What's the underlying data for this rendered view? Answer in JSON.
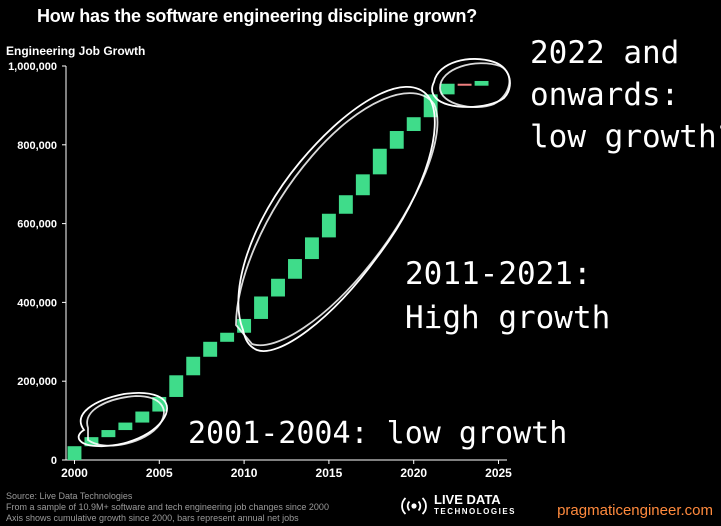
{
  "title": "How has the software engineering discipline grown?",
  "ylabel_title": "Engineering Job Growth",
  "chart_data": {
    "type": "waterfall",
    "title": "How has the software engineering discipline grown?",
    "ylabel": "Engineering Job Growth",
    "xlim": [
      1999.5,
      2025.5
    ],
    "ylim": [
      0,
      1000000
    ],
    "yticks": [
      0,
      200000,
      400000,
      600000,
      800000,
      1000000
    ],
    "ytick_labels": [
      "0",
      "200,000",
      "400,000",
      "600,000",
      "800,000",
      "1,000,000"
    ],
    "xticks": [
      2000,
      2005,
      2010,
      2015,
      2020,
      2025
    ],
    "years": [
      2000,
      2001,
      2002,
      2003,
      2004,
      2005,
      2006,
      2007,
      2008,
      2009,
      2010,
      2011,
      2012,
      2013,
      2014,
      2015,
      2016,
      2017,
      2018,
      2019,
      2020,
      2021,
      2022,
      2023,
      2024
    ],
    "cumulative_totals": [
      35000,
      58000,
      76000,
      95000,
      123000,
      160000,
      215000,
      262000,
      300000,
      323000,
      358000,
      415000,
      460000,
      510000,
      565000,
      625000,
      672000,
      725000,
      790000,
      835000,
      870000,
      928000,
      955000,
      950000,
      962000
    ],
    "colors": {
      "increase": "#3fdc8a",
      "decrease": "#f08080"
    }
  },
  "annotations": {
    "late": [
      "2022 and",
      "onwards:",
      "low growth?"
    ],
    "mid": [
      "2011-2021:",
      "High growth"
    ],
    "early": "2001-2004: low growth"
  },
  "footer": {
    "source": "Source: Live Data Technologies",
    "sample": "From a sample of 10.9M+ software and tech engineering job changes since 2000",
    "axis_note": "Axis shows cumulative growth since 2000, bars represent annual net jobs"
  },
  "brand": {
    "name": "LIVE DATA",
    "sub": "TECHNOLOGIES"
  },
  "site": "pragmaticengineer.com"
}
